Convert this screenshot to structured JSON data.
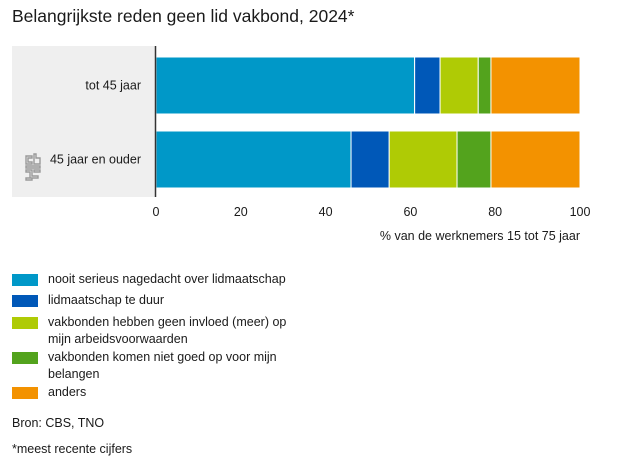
{
  "chart_data": {
    "type": "bar",
    "orientation": "horizontal",
    "stacked": true,
    "title": "Belangrijkste reden geen lid vakbond, 2024*",
    "categories": [
      "tot 45 jaar",
      "45 jaar en ouder"
    ],
    "series": [
      {
        "name": "nooit serieus nagedacht over lidmaatschap",
        "color": "#0098c8",
        "values": [
          61,
          46
        ]
      },
      {
        "name": "lidmaatschap te duur",
        "color": "#0058b8",
        "values": [
          6,
          9
        ]
      },
      {
        "name": "vakbonden hebben geen invloed (meer) op mijn arbeidsvoorwaarden",
        "color": "#afcb05",
        "values": [
          9,
          16
        ]
      },
      {
        "name": "vakbonden komen niet goed op voor mijn belangen",
        "color": "#53a31d",
        "values": [
          3,
          8
        ]
      },
      {
        "name": "anders",
        "color": "#f39200",
        "values": [
          21,
          21
        ]
      }
    ],
    "xlabel": "% van de werknemers 15 tot 75 jaar",
    "xlim": [
      0,
      100
    ],
    "xticks": [
      0,
      20,
      40,
      60,
      80,
      100
    ],
    "grid": false,
    "legend_position": "bottom"
  },
  "logo": "cbs",
  "source": "Bron: CBS, TNO",
  "footnote": "*meest recente cijfers"
}
